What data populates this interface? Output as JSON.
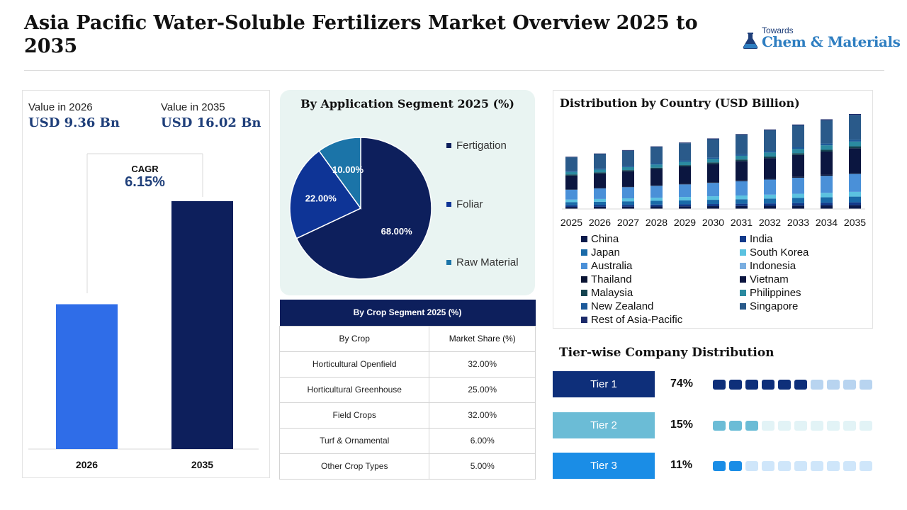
{
  "header": {
    "title": "Asia Pacific Water-Soluble Fertilizers Market Overview 2025 to 2035",
    "logo_small": "Towards",
    "logo_main": "Chem & Materials"
  },
  "value_panel": {
    "label_2026": "Value in 2026",
    "value_2026": "USD 9.36 Bn",
    "label_2035": "Value in 2035",
    "value_2035": "USD 16.02 Bn",
    "cagr_label": "CAGR",
    "cagr_value": "6.15%"
  },
  "colors": {
    "navy": "#0d1f5c",
    "blue": "#2f6de8",
    "mid_blue": "#0e3496",
    "teal_blue": "#1b74a8",
    "tier1": "#0e2f7a",
    "tier2": "#6bbcd6",
    "tier3": "#1a8de6"
  },
  "chart_data": [
    {
      "type": "bar",
      "categories": [
        "2026",
        "2035"
      ],
      "values": [
        9.36,
        16.02
      ],
      "colors": [
        "#2f6de8",
        "#0d1f5c"
      ]
    },
    {
      "type": "pie",
      "title": "By Application Segment 2025 (%)",
      "labels": [
        "Fertigation",
        "Foliar",
        "Raw Material"
      ],
      "values": [
        68.0,
        22.0,
        10.0
      ],
      "value_labels": [
        "68.00%",
        "22.00%",
        "10.00%"
      ],
      "colors": [
        "#0d1f5c",
        "#0e3496",
        "#1b74a8"
      ]
    },
    {
      "type": "bar",
      "stacked": true,
      "title": "Distribution by Country (USD Billion)",
      "categories": [
        "2025",
        "2026",
        "2027",
        "2028",
        "2029",
        "2030",
        "2031",
        "2032",
        "2033",
        "2034",
        "2035"
      ],
      "totals": [
        8.81,
        9.36,
        9.94,
        10.56,
        11.21,
        11.9,
        12.64,
        13.42,
        14.25,
        15.13,
        16.02
      ],
      "series": [
        {
          "name": "China",
          "color": "#0b1a4a"
        },
        {
          "name": "India",
          "color": "#123a8a"
        },
        {
          "name": "Japan",
          "color": "#1a6aa8"
        },
        {
          "name": "South Korea",
          "color": "#5bc2e0"
        },
        {
          "name": "Australia",
          "color": "#4a90d8"
        },
        {
          "name": "Indonesia",
          "color": "#7aaee0"
        },
        {
          "name": "Thailand",
          "color": "#0a1433"
        },
        {
          "name": "Vietnam",
          "color": "#0b1640"
        },
        {
          "name": "Malaysia",
          "color": "#13424f"
        },
        {
          "name": "Philippines",
          "color": "#2a8aa0"
        },
        {
          "name": "New Zealand",
          "color": "#1d5a9a"
        },
        {
          "name": "Singapore",
          "color": "#2a5a8a"
        },
        {
          "name": "Rest of Asia-Pacific",
          "color": "#1c2a6a"
        }
      ]
    }
  ],
  "crop_table": {
    "title": "By Crop Segment 2025 (%)",
    "headers": [
      "By Crop",
      "Market Share (%)"
    ],
    "rows": [
      [
        "Horticultural Openfield",
        "32.00%"
      ],
      [
        "Horticultural Greenhouse",
        "25.00%"
      ],
      [
        "Field Crops",
        "32.00%"
      ],
      [
        "Turf & Ornamental",
        "6.00%"
      ],
      [
        "Other Crop Types",
        "5.00%"
      ]
    ]
  },
  "tiers": {
    "title": "Tier-wise Company Distribution",
    "items": [
      {
        "label": "Tier 1",
        "pct": "74%",
        "filled": 6,
        "total": 10
      },
      {
        "label": "Tier 2",
        "pct": "15%",
        "filled": 3,
        "total": 10
      },
      {
        "label": "Tier 3",
        "pct": "11%",
        "filled": 2,
        "total": 10
      }
    ]
  }
}
